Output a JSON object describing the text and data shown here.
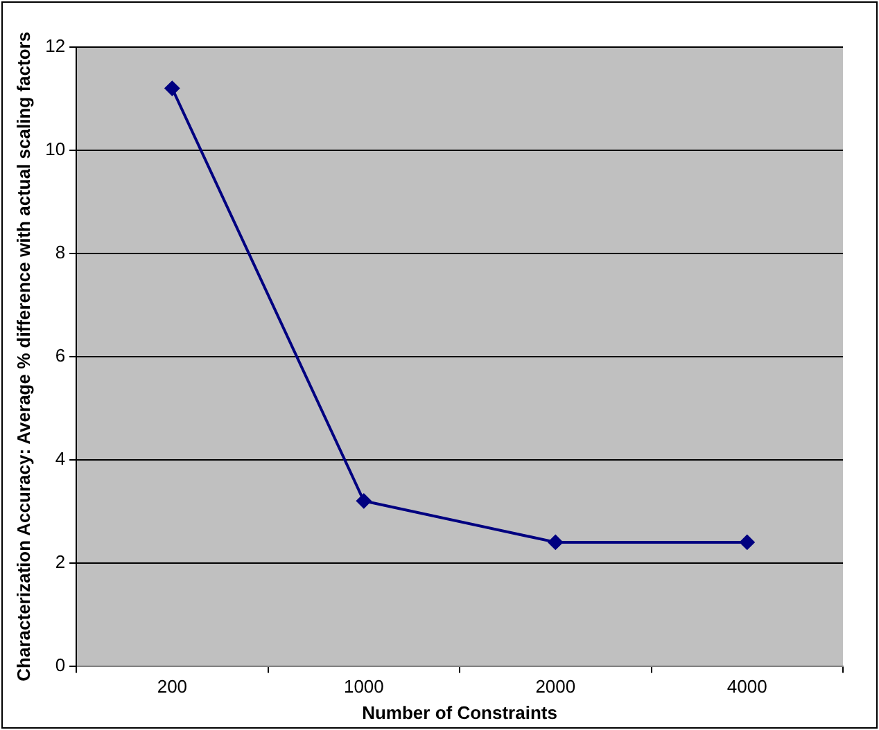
{
  "chart_data": {
    "type": "line",
    "xlabel": "Number of Constraints",
    "ylabel": "Characterization Accuracy: Average % difference with actual scaling factors",
    "categories": [
      "200",
      "1000",
      "2000",
      "4000"
    ],
    "series": [
      {
        "color": "#000080",
        "values": [
          11.2,
          3.2,
          2.4,
          2.4
        ]
      }
    ],
    "ylim": [
      0,
      12
    ],
    "yticks": [
      0,
      2,
      4,
      6,
      8,
      10,
      12
    ],
    "grid": "y",
    "legend": false,
    "marker": "diamond",
    "line_style": "solid"
  }
}
